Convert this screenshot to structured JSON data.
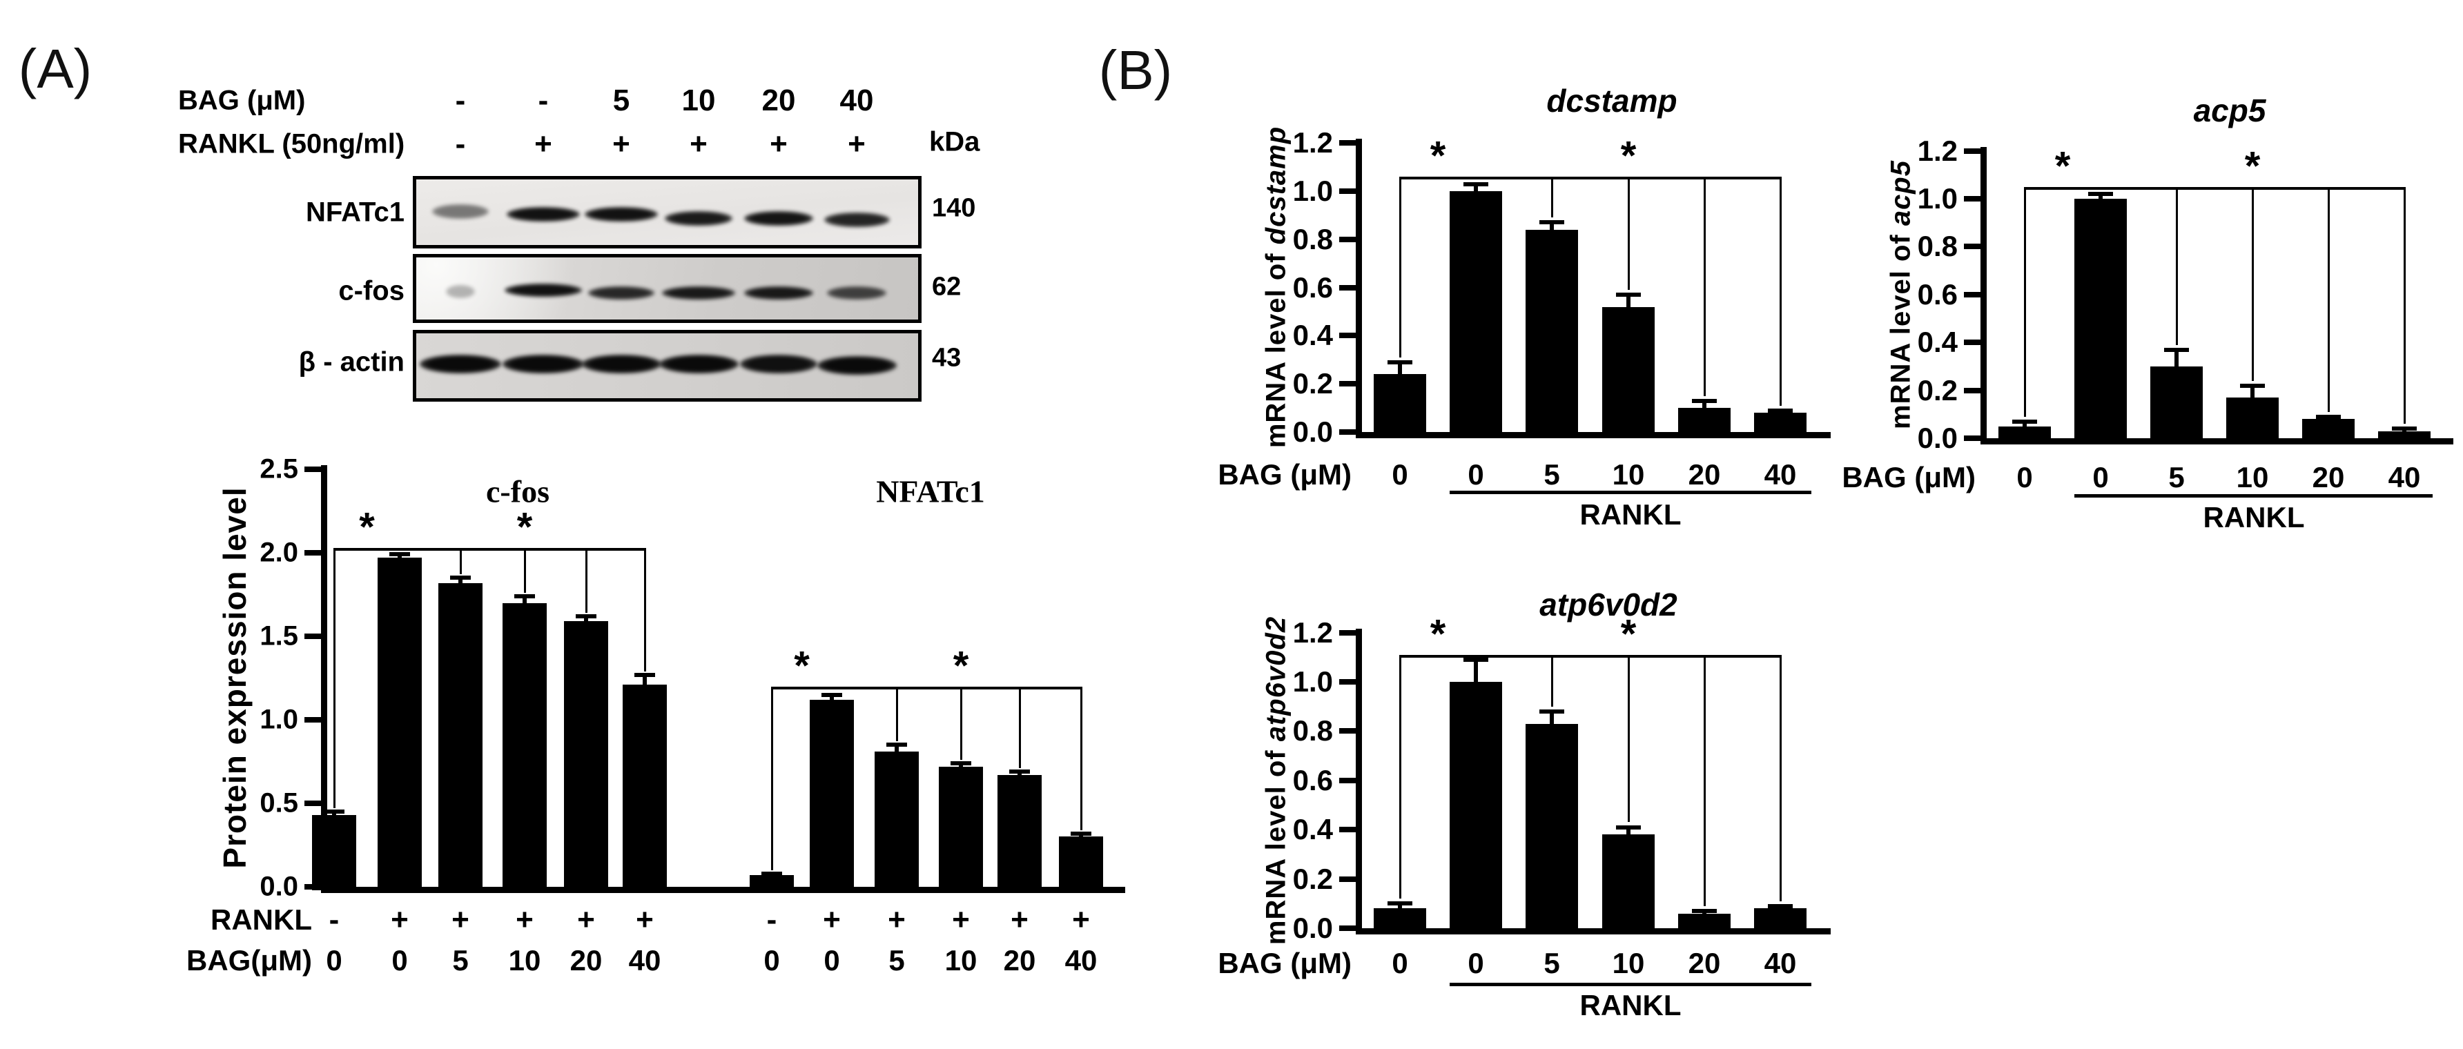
{
  "colors": {
    "ink": "#000000",
    "background": "#ffffff",
    "bar_fill": "#000000"
  },
  "panel_a": {
    "label": "(A)",
    "blot": {
      "header_rows": [
        {
          "label": "BAG (μM)",
          "values": [
            "-",
            "-",
            "5",
            "10",
            "20",
            "40"
          ]
        },
        {
          "label": "RANKL (50ng/ml)",
          "values": [
            "-",
            "+",
            "+",
            "+",
            "+",
            "+"
          ]
        }
      ],
      "kda_header": "kDa",
      "rows": [
        {
          "label": "NFATc1",
          "kda": "140",
          "bands": [
            {
              "w": 82,
              "o": 0.5,
              "dy": -4
            },
            {
              "w": 106,
              "o": 0.96,
              "dy": 0
            },
            {
              "w": 106,
              "o": 0.96,
              "dy": 0
            },
            {
              "w": 98,
              "o": 0.92,
              "dy": 6
            },
            {
              "w": 100,
              "o": 0.95,
              "dy": 6
            },
            {
              "w": 95,
              "o": 0.88,
              "dy": 8
            }
          ]
        },
        {
          "label": "c-fos",
          "kda": "62",
          "bands": [
            {
              "w": 42,
              "o": 0.28,
              "dy": -2
            },
            {
              "w": 112,
              "o": 0.96,
              "dy": -4
            },
            {
              "w": 96,
              "o": 0.85,
              "dy": 0
            },
            {
              "w": 106,
              "o": 0.92,
              "dy": 0
            },
            {
              "w": 100,
              "o": 0.92,
              "dy": 0
            },
            {
              "w": 86,
              "o": 0.72,
              "dy": 0
            }
          ]
        },
        {
          "label": "β - actin",
          "kda": "43",
          "bands": [
            {
              "w": 118,
              "o": 1,
              "dy": 0
            },
            {
              "w": 118,
              "o": 1,
              "dy": 0
            },
            {
              "w": 115,
              "o": 1,
              "dy": 0
            },
            {
              "w": 115,
              "o": 1,
              "dy": 0
            },
            {
              "w": 112,
              "o": 0.97,
              "dy": 0
            },
            {
              "w": 115,
              "o": 1,
              "dy": 2
            }
          ]
        }
      ]
    }
  },
  "panel_b": {
    "label": "(B)"
  },
  "chart_data": [
    {
      "id": "protein_expression",
      "type": "bar",
      "ylabel": "Protein expression level",
      "ylim": [
        0,
        2.5
      ],
      "ytick_step": 0.5,
      "grid": false,
      "legend": "none",
      "groups": [
        {
          "title": "c-fos",
          "values": [
            0.43,
            1.97,
            1.82,
            1.7,
            1.59,
            1.21
          ],
          "errors": [
            0.02,
            0.02,
            0.03,
            0.04,
            0.03,
            0.06
          ],
          "bracket": {
            "level": 2.03,
            "asterisks": [
              0.5,
              3
            ]
          }
        },
        {
          "title": "NFATc1",
          "values": [
            0.07,
            1.12,
            0.81,
            0.72,
            0.67,
            0.3
          ],
          "errors": [
            0.01,
            0.03,
            0.04,
            0.02,
            0.02,
            0.02
          ],
          "bracket": {
            "level": 1.2,
            "asterisks": [
              0.5,
              3
            ]
          }
        }
      ],
      "x_rows": [
        {
          "label": "RANKL",
          "values": [
            [
              "-",
              "+",
              "+",
              "+",
              "+",
              "+"
            ],
            [
              "-",
              "+",
              "+",
              "+",
              "+",
              "+"
            ]
          ]
        },
        {
          "label": "BAG(μM)",
          "values": [
            [
              "0",
              "0",
              "5",
              "10",
              "20",
              "40"
            ],
            [
              "0",
              "0",
              "5",
              "10",
              "20",
              "40"
            ]
          ]
        }
      ],
      "significance_symbol": "*"
    },
    {
      "id": "dcstamp",
      "type": "bar",
      "title": "dcstamp",
      "ylabel_prefix": "mRNA level of ",
      "ylabel_gene": "dcstamp",
      "xlabel": "BAG (μM)",
      "rankl_label": "RANKL",
      "categories": [
        "0",
        "0",
        "5",
        "10",
        "20",
        "40"
      ],
      "values": [
        0.24,
        1.0,
        0.84,
        0.52,
        0.1,
        0.08
      ],
      "errors": [
        0.05,
        0.03,
        0.03,
        0.05,
        0.03,
        0.01
      ],
      "ylim": [
        0,
        1.2
      ],
      "ytick_step": 0.2,
      "grid": false,
      "bracket": {
        "level": 1.06,
        "asterisks": [
          0.5,
          3
        ]
      },
      "significance_symbol": "*"
    },
    {
      "id": "acp5",
      "type": "bar",
      "title": "acp5",
      "ylabel_prefix": "mRNA level of ",
      "ylabel_gene": "acp5",
      "xlabel": "BAG (μM)",
      "rankl_label": "RANKL",
      "categories": [
        "0",
        "0",
        "5",
        "10",
        "20",
        "40"
      ],
      "values": [
        0.05,
        1.0,
        0.3,
        0.17,
        0.08,
        0.03
      ],
      "errors": [
        0.02,
        0.02,
        0.07,
        0.05,
        0.01,
        0.01
      ],
      "ylim": [
        0,
        1.2
      ],
      "ytick_step": 0.2,
      "grid": false,
      "bracket": {
        "level": 1.05,
        "asterisks": [
          0.5,
          3
        ]
      },
      "significance_symbol": "*"
    },
    {
      "id": "atp6v0d2",
      "type": "bar",
      "title": "atp6v0d2",
      "ylabel_prefix": "mRNA level of ",
      "ylabel_gene": "atp6v0d2",
      "xlabel": "BAG (μM)",
      "rankl_label": "RANKL",
      "categories": [
        "0",
        "0",
        "5",
        "10",
        "20",
        "40"
      ],
      "values": [
        0.08,
        1.0,
        0.83,
        0.38,
        0.06,
        0.08
      ],
      "errors": [
        0.02,
        0.09,
        0.05,
        0.03,
        0.01,
        0.01
      ],
      "ylim": [
        0,
        1.2
      ],
      "ytick_step": 0.2,
      "grid": false,
      "bracket": {
        "level": 1.11,
        "asterisks": [
          0.5,
          3
        ]
      },
      "significance_symbol": "*"
    }
  ]
}
